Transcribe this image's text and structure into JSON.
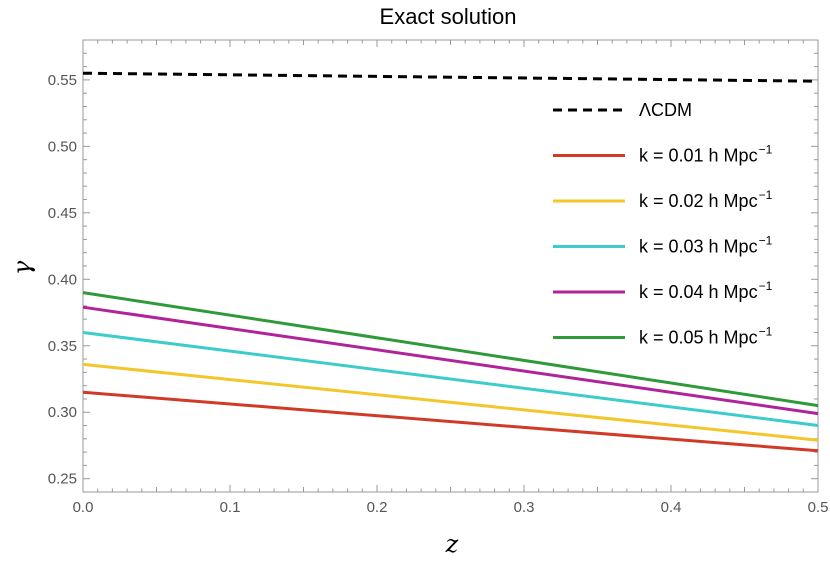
{
  "chart_data": {
    "type": "line",
    "title": "Exact solution",
    "xlabel": "z",
    "ylabel": "γ",
    "xlim": [
      0.0,
      0.5
    ],
    "ylim": [
      0.24,
      0.58
    ],
    "x_ticks": [
      "0.0",
      "0.1",
      "0.2",
      "0.3",
      "0.4",
      "0.5"
    ],
    "y_ticks": [
      "0.25",
      "0.30",
      "0.35",
      "0.40",
      "0.45",
      "0.50",
      "0.55"
    ],
    "grid": false,
    "legend_position": "right",
    "series": [
      {
        "name": "ΛCDM",
        "name_sup": "",
        "color": "#000000",
        "dash": true,
        "x": [
          0.0,
          0.5
        ],
        "y": [
          0.555,
          0.549
        ]
      },
      {
        "name": "k = 0.01 h Mpc",
        "name_sup": "−1",
        "color": "#d03a27",
        "dash": false,
        "x": [
          0.0,
          0.5
        ],
        "y": [
          0.315,
          0.271
        ]
      },
      {
        "name": "k = 0.02 h Mpc",
        "name_sup": "−1",
        "color": "#f3c72b",
        "dash": false,
        "x": [
          0.0,
          0.5
        ],
        "y": [
          0.336,
          0.279
        ]
      },
      {
        "name": "k = 0.03 h Mpc",
        "name_sup": "−1",
        "color": "#3ccccc",
        "dash": false,
        "x": [
          0.0,
          0.5
        ],
        "y": [
          0.36,
          0.29
        ]
      },
      {
        "name": "k = 0.04 h Mpc",
        "name_sup": "−1",
        "color": "#b0249a",
        "dash": false,
        "x": [
          0.0,
          0.5
        ],
        "y": [
          0.379,
          0.299
        ]
      },
      {
        "name": "k = 0.05 h Mpc",
        "name_sup": "−1",
        "color": "#2f9a3a",
        "dash": false,
        "x": [
          0.0,
          0.5
        ],
        "y": [
          0.39,
          0.305
        ]
      }
    ]
  }
}
